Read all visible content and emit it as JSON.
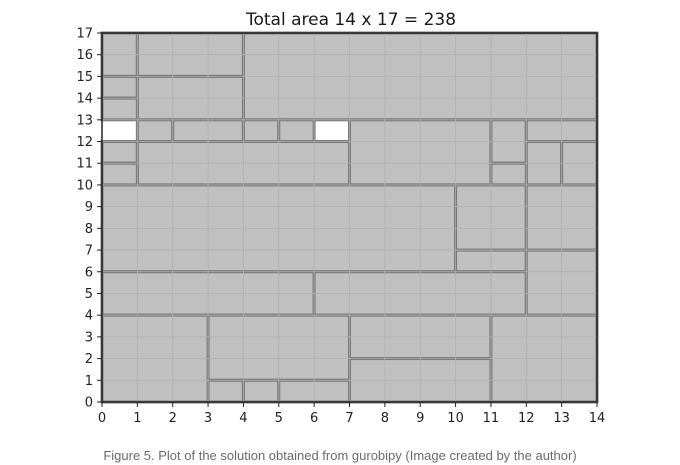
{
  "chart_data": {
    "type": "area",
    "title": "Total area 14 x 17 = 238",
    "xlabel": "",
    "ylabel": "",
    "xlim": [
      0,
      14
    ],
    "ylim": [
      0,
      17
    ],
    "xticks": [
      0,
      1,
      2,
      3,
      4,
      5,
      6,
      7,
      8,
      9,
      10,
      11,
      12,
      13,
      14
    ],
    "yticks": [
      0,
      1,
      2,
      3,
      4,
      5,
      6,
      7,
      8,
      9,
      10,
      11,
      12,
      13,
      14,
      15,
      16,
      17
    ],
    "grid": true,
    "colors": {
      "piece_fill": "#c0c0c0",
      "piece_edge": "#7a7a7a",
      "empty": "#ffffff",
      "grid": "#b0b0b0"
    },
    "pieces": [
      {
        "x0": 0,
        "y0": 15,
        "x1": 1,
        "y1": 17
      },
      {
        "x0": 1,
        "y0": 15,
        "x1": 4,
        "y1": 17
      },
      {
        "x0": 4,
        "y0": 13,
        "x1": 14,
        "y1": 17
      },
      {
        "x0": 0,
        "y0": 14,
        "x1": 1,
        "y1": 15
      },
      {
        "x0": 1,
        "y0": 13,
        "x1": 4,
        "y1": 15
      },
      {
        "x0": 0,
        "y0": 13,
        "x1": 1,
        "y1": 14
      },
      {
        "x0": 1,
        "y0": 12,
        "x1": 2,
        "y1": 13
      },
      {
        "x0": 2,
        "y0": 12,
        "x1": 4,
        "y1": 13
      },
      {
        "x0": 4,
        "y0": 12,
        "x1": 5,
        "y1": 13
      },
      {
        "x0": 5,
        "y0": 12,
        "x1": 6,
        "y1": 13
      },
      {
        "x0": 7,
        "y0": 10,
        "x1": 11,
        "y1": 13
      },
      {
        "x0": 11,
        "y0": 11,
        "x1": 12,
        "y1": 13
      },
      {
        "x0": 12,
        "y0": 12,
        "x1": 14,
        "y1": 13
      },
      {
        "x0": 0,
        "y0": 11,
        "x1": 1,
        "y1": 12
      },
      {
        "x0": 1,
        "y0": 10,
        "x1": 7,
        "y1": 12
      },
      {
        "x0": 12,
        "y0": 10,
        "x1": 13,
        "y1": 12
      },
      {
        "x0": 13,
        "y0": 10,
        "x1": 14,
        "y1": 12
      },
      {
        "x0": 0,
        "y0": 10,
        "x1": 1,
        "y1": 11
      },
      {
        "x0": 11,
        "y0": 10,
        "x1": 12,
        "y1": 11
      },
      {
        "x0": 0,
        "y0": 6,
        "x1": 10,
        "y1": 10
      },
      {
        "x0": 10,
        "y0": 7,
        "x1": 12,
        "y1": 10
      },
      {
        "x0": 12,
        "y0": 7,
        "x1": 14,
        "y1": 10
      },
      {
        "x0": 10,
        "y0": 6,
        "x1": 12,
        "y1": 7
      },
      {
        "x0": 0,
        "y0": 4,
        "x1": 6,
        "y1": 6
      },
      {
        "x0": 6,
        "y0": 4,
        "x1": 12,
        "y1": 6
      },
      {
        "x0": 12,
        "y0": 4,
        "x1": 14,
        "y1": 7
      },
      {
        "x0": 0,
        "y0": 0,
        "x1": 3,
        "y1": 4
      },
      {
        "x0": 3,
        "y0": 1,
        "x1": 7,
        "y1": 4
      },
      {
        "x0": 7,
        "y0": 2,
        "x1": 11,
        "y1": 4
      },
      {
        "x0": 11,
        "y0": 0,
        "x1": 14,
        "y1": 4
      },
      {
        "x0": 3,
        "y0": 0,
        "x1": 4,
        "y1": 1
      },
      {
        "x0": 4,
        "y0": 0,
        "x1": 5,
        "y1": 1
      },
      {
        "x0": 5,
        "y0": 0,
        "x1": 7,
        "y1": 1
      },
      {
        "x0": 7,
        "y0": 0,
        "x1": 11,
        "y1": 2
      }
    ],
    "empty_cells": [
      {
        "x0": 0,
        "y0": 12,
        "x1": 1,
        "y1": 13
      },
      {
        "x0": 6,
        "y0": 12,
        "x1": 7,
        "y1": 13
      }
    ]
  },
  "caption": "Figure 5. Plot of the solution obtained from gurobipy (Image created by the author)"
}
